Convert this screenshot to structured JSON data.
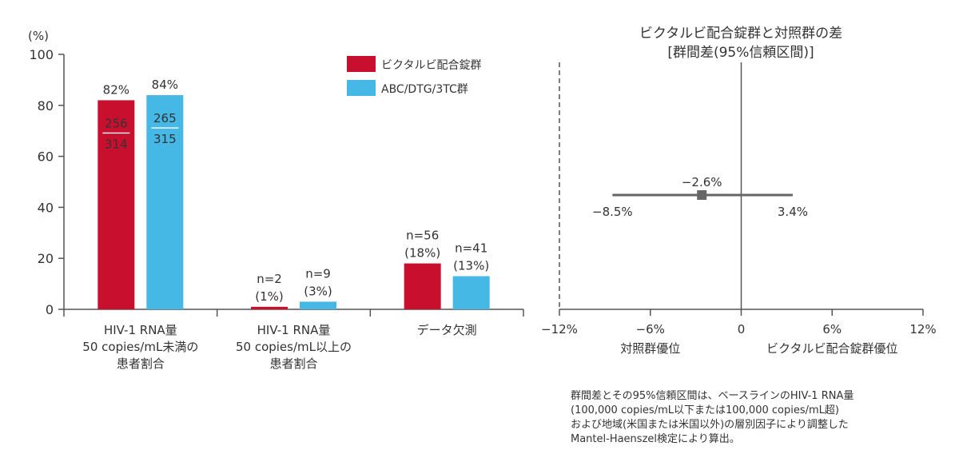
{
  "chart_data": [
    {
      "type": "bar",
      "ylabel": "(%)",
      "ylim": [
        0,
        100
      ],
      "yticks": [
        0,
        20,
        40,
        60,
        80,
        100
      ],
      "categories": [
        [
          "HIV-1 RNA量",
          "50 copies/mL未満の",
          "患者割合"
        ],
        [
          "HIV-1 RNA量",
          "50 copies/mL以上の",
          "患者割合"
        ],
        [
          "データ欠測"
        ]
      ],
      "legend_position": "top-right",
      "series": [
        {
          "name": "ビクタルビ配合錠群",
          "color": "#c8102e",
          "values": [
            82,
            1,
            18
          ],
          "labels": [
            [
              "82%"
            ],
            [
              "n=2",
              "(1%)"
            ],
            [
              "n=56",
              "(18%)"
            ]
          ],
          "fraction": {
            "numerator": "256",
            "denominator": "314"
          }
        },
        {
          "name": "ABC/DTG/3TC群",
          "color": "#45b8e6",
          "values": [
            84,
            3,
            13
          ],
          "labels": [
            [
              "84%"
            ],
            [
              "n=9",
              "(3%)"
            ],
            [
              "n=41",
              "(13%)"
            ]
          ],
          "fraction": {
            "numerator": "265",
            "denominator": "315"
          }
        }
      ]
    },
    {
      "type": "forest",
      "title": [
        "ビクタルビ配合錠群と対照群の差",
        "[群間差(95%信頼区間)]"
      ],
      "xlim": [
        -12,
        12
      ],
      "xticks": [
        -12,
        -6,
        0,
        6,
        12
      ],
      "xtick_labels": [
        "−12%",
        "−6%",
        "0",
        "6%",
        "12%"
      ],
      "estimate": -2.6,
      "ci": [
        -8.5,
        3.4
      ],
      "estimate_label": "−2.6%",
      "ci_lower_label": "−8.5%",
      "ci_upper_label": "3.4%",
      "left_label": "対照群優位",
      "right_label": "ビクタルビ配合錠群優位",
      "dashed_line_at": -12,
      "color": "#666666"
    }
  ],
  "footnote": [
    "群間差とその95%信頼区間は、ベースラインのHIV-1 RNA量",
    "(100,000 copies/mL以下または100,000 copies/mL超)",
    "および地域(米国または米国以外)の層別因子により調整した",
    "Mantel-Haenszel検定により算出。"
  ]
}
